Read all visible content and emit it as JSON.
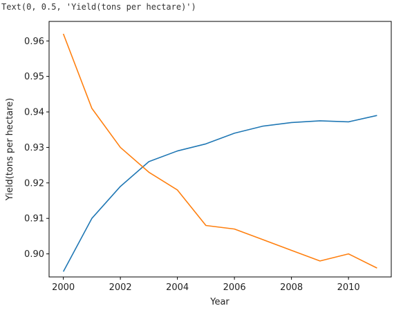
{
  "output_text": "Text(0, 0.5, 'Yield(tons per hectare)')",
  "chart_data": {
    "type": "line",
    "title": "",
    "xlabel": "Year",
    "ylabel": "Yield(tons per hectare)",
    "xlim": [
      1999.5,
      2011.5
    ],
    "ylim": [
      0.8935,
      0.9655
    ],
    "xticks": [
      2000,
      2002,
      2004,
      2006,
      2008,
      2010
    ],
    "yticks": [
      0.9,
      0.91,
      0.92,
      0.93,
      0.94,
      0.95,
      0.96
    ],
    "grid": false,
    "x": [
      2000,
      2001,
      2002,
      2003,
      2004,
      2005,
      2006,
      2007,
      2008,
      2009,
      2010,
      2011
    ],
    "series": [
      {
        "color": "#1f77b4",
        "values": [
          0.895,
          0.91,
          0.919,
          0.926,
          0.929,
          0.931,
          0.934,
          0.936,
          0.937,
          0.9375,
          0.9372,
          0.939
        ]
      },
      {
        "color": "#ff7f0e",
        "values": [
          0.962,
          0.941,
          0.93,
          0.923,
          0.918,
          0.908,
          0.907,
          0.904,
          0.901,
          0.898,
          0.9,
          0.896
        ]
      }
    ]
  }
}
